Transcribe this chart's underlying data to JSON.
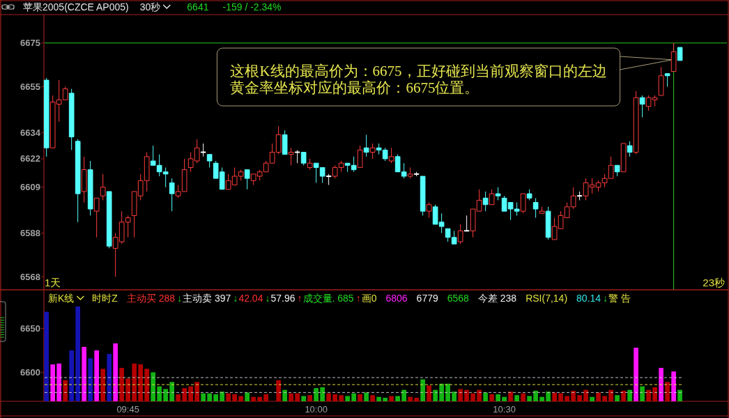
{
  "chart_data": [
    {
      "type": "candlestick",
      "title": "苹果2005(CZCE AP005)",
      "subtitle": "30秒",
      "categories": [
        null,
        null,
        null,
        null,
        null,
        null,
        null,
        null,
        null,
        null,
        null,
        null,
        null,
        null,
        null,
        null,
        null,
        null,
        null,
        null,
        null,
        null,
        null,
        null,
        null,
        null,
        null,
        null,
        null,
        null,
        null,
        null,
        null,
        null,
        null,
        null,
        null,
        null,
        null,
        null,
        null,
        null,
        null,
        null,
        null,
        null,
        null,
        null,
        null,
        null,
        null,
        null,
        null,
        null,
        null,
        null,
        null,
        null,
        null,
        null,
        null,
        null,
        null,
        null,
        null,
        null,
        null,
        null,
        null,
        null,
        null,
        null,
        null,
        null,
        null,
        null,
        null,
        null,
        null,
        null,
        null,
        null,
        null,
        null,
        null,
        null,
        null,
        null,
        null,
        null,
        null,
        null,
        null,
        null,
        null,
        null,
        null,
        null,
        null,
        null,
        null,
        null
      ],
      "ohlc": [
        [
          6658,
          6659,
          6623,
          6627
        ],
        [
          6627,
          6651,
          6627,
          6648
        ],
        [
          6647,
          6658,
          6639,
          6649
        ],
        [
          6649,
          6655,
          6649,
          6654
        ],
        [
          6652,
          6654,
          6626,
          6632
        ],
        [
          6630,
          6631,
          6593,
          6606
        ],
        [
          6607,
          6623,
          6602,
          6617
        ],
        [
          6617,
          6621,
          6596,
          6599
        ],
        [
          6598,
          6604,
          6586,
          6604
        ],
        [
          6605,
          6615,
          6603,
          6609
        ],
        [
          6607,
          6607,
          6581,
          6582
        ],
        [
          6581,
          6588,
          6568,
          6586
        ],
        [
          6584,
          6598,
          6583,
          6593
        ],
        [
          6593,
          6596,
          6586,
          6595
        ],
        [
          6596,
          6607,
          6586,
          6607
        ],
        [
          6605,
          6615,
          6603,
          6612
        ],
        [
          6612,
          6625,
          6607,
          6623
        ],
        [
          6621,
          6628,
          6619,
          6619
        ],
        [
          6619,
          6624,
          6614,
          6616
        ],
        [
          6616,
          6618,
          6609,
          6615
        ],
        [
          6611,
          6613,
          6598,
          6606
        ],
        [
          6605,
          6610,
          6604,
          6607
        ],
        [
          6607,
          6622,
          6607,
          6617
        ],
        [
          6618,
          6625,
          6616,
          6622
        ],
        [
          6621,
          6631,
          6620,
          6627
        ],
        [
          6625,
          6629,
          6623,
          6625
        ],
        [
          6624,
          6624,
          6618,
          6621
        ],
        [
          6620,
          6621,
          6613,
          6613
        ],
        [
          6616,
          6618,
          6608,
          6608
        ],
        [
          6608,
          6615,
          6608,
          6612
        ],
        [
          6610,
          6618,
          6610,
          6614
        ],
        [
          6614,
          6617,
          6612,
          6616
        ],
        [
          6617,
          6617,
          6608,
          6613
        ],
        [
          6612,
          6615,
          6610,
          6615
        ],
        [
          6614,
          6617,
          6612,
          6616
        ],
        [
          6616,
          6621,
          6616,
          6620
        ],
        [
          6620,
          6629,
          6620,
          6625
        ],
        [
          6625,
          6637,
          6624,
          6633
        ],
        [
          6633,
          6635,
          6624,
          6624
        ],
        [
          6624,
          6627,
          6619,
          6625
        ],
        [
          6625,
          6626,
          6620,
          6625
        ],
        [
          6625,
          6625,
          6619,
          6620
        ],
        [
          6618,
          6622,
          6617,
          6620
        ],
        [
          6620,
          6620,
          6611,
          6618
        ],
        [
          6618,
          6618,
          6611,
          6614
        ],
        [
          6614,
          6615,
          6610,
          6614
        ],
        [
          6614,
          6619,
          6613,
          6618
        ],
        [
          6618,
          6621,
          6616,
          6620
        ],
        [
          6620,
          6620,
          6616,
          6619
        ],
        [
          6619,
          6623,
          6616,
          6617
        ],
        [
          6618,
          6628,
          6618,
          6626
        ],
        [
          6627,
          6633,
          6623,
          6625
        ],
        [
          6625,
          6629,
          6622,
          6627
        ],
        [
          6627,
          6629,
          6624,
          6626
        ],
        [
          6626,
          6627,
          6621,
          6622
        ],
        [
          6621,
          6627,
          6620,
          6623
        ],
        [
          6623,
          6624,
          6616,
          6616
        ],
        [
          6616,
          6620,
          6613,
          6614
        ],
        [
          6614,
          6618,
          6613,
          6615
        ],
        [
          6615,
          6616,
          6614,
          6615
        ],
        [
          6614,
          6614,
          6596,
          6598
        ],
        [
          6598,
          6602,
          6595,
          6601
        ],
        [
          6600,
          6601,
          6592,
          6592
        ],
        [
          6593,
          6597,
          6588,
          6591
        ],
        [
          6590,
          6590,
          6584,
          6586
        ],
        [
          6586,
          6589,
          6583,
          6583
        ],
        [
          6584,
          6592,
          6583,
          6589
        ],
        [
          6589,
          6596,
          6589,
          6589
        ],
        [
          6589,
          6599,
          6586,
          6599
        ],
        [
          6598,
          6608,
          6598,
          6603
        ],
        [
          6604,
          6607,
          6598,
          6601
        ],
        [
          6601,
          6608,
          6601,
          6606
        ],
        [
          6606,
          6609,
          6603,
          6605
        ],
        [
          6604,
          6605,
          6598,
          6598
        ],
        [
          6602,
          6602,
          6594,
          6599
        ],
        [
          6599,
          6602,
          6596,
          6598
        ],
        [
          6598,
          6606,
          6597,
          6606
        ],
        [
          6606,
          6608,
          6603,
          6604
        ],
        [
          6602,
          6604,
          6595,
          6599
        ],
        [
          6597,
          6600,
          6597,
          6598
        ],
        [
          6598,
          6600,
          6585,
          6586
        ],
        [
          6585,
          6595,
          6585,
          6591
        ],
        [
          6590,
          6598,
          6590,
          6596
        ],
        [
          6595,
          6602,
          6595,
          6600
        ],
        [
          6600,
          6609,
          6599,
          6605
        ],
        [
          6605,
          6607,
          6603,
          6605
        ],
        [
          6605,
          6613,
          6603,
          6611
        ],
        [
          6609,
          6613,
          6606,
          6610
        ],
        [
          6609,
          6612,
          6607,
          6611
        ],
        [
          6611,
          6615,
          6609,
          6613
        ],
        [
          6613,
          6623,
          6613,
          6619
        ],
        [
          6619,
          6619,
          6614,
          6616
        ],
        [
          6616,
          6629,
          6616,
          6629
        ],
        [
          6628,
          6630,
          6623,
          6625
        ],
        [
          6625,
          6653,
          6624,
          6650
        ],
        [
          6650,
          6651,
          6641,
          6647
        ],
        [
          6646,
          6651,
          6644,
          6650
        ],
        [
          6649,
          6651,
          6646,
          6650
        ],
        [
          6651,
          6664,
          6651,
          6660
        ],
        [
          6661,
          6661,
          6655,
          6660
        ],
        [
          6662,
          6675,
          6662,
          6671
        ],
        [
          6673,
          6673,
          6667,
          6667
        ]
      ],
      "colors": [
        "#54ffff",
        "#ff3c3c",
        "#ff3c3c",
        "#ff3c3c",
        "#54ffff",
        "#54ffff",
        "#ff3c3c",
        "#54ffff",
        "#ff3c3c",
        "#ff3c3c",
        "#54ffff",
        "#ff3c3c",
        "#ff3c3c",
        "#ff3c3c",
        "#ff3c3c",
        "#ff3c3c",
        "#ff3c3c",
        "#54ffff",
        "#54ffff",
        "#54ffff",
        "#54ffff",
        "#ff3c3c",
        "#ff3c3c",
        "#ff3c3c",
        "#ff3c3c",
        "#ffffff",
        "#54ffff",
        "#54ffff",
        "#54ffff",
        "#ff3c3c",
        "#ff3c3c",
        "#ff3c3c",
        "#54ffff",
        "#ff3c3c",
        "#ff3c3c",
        "#ff3c3c",
        "#ff3c3c",
        "#ff3c3c",
        "#54ffff",
        "#ff3c3c",
        "#ffffff",
        "#54ffff",
        "#ff3c3c",
        "#54ffff",
        "#54ffff",
        "#ffffff",
        "#ff3c3c",
        "#ff3c3c",
        "#54ffff",
        "#54ffff",
        "#ff3c3c",
        "#54ffff",
        "#ff3c3c",
        "#54ffff",
        "#54ffff",
        "#ff3c3c",
        "#54ffff",
        "#54ffff",
        "#ff3c3c",
        "#ffffff",
        "#54ffff",
        "#ff3c3c",
        "#54ffff",
        "#54ffff",
        "#54ffff",
        "#54ffff",
        "#ff3c3c",
        "#ffffff",
        "#ff3c3c",
        "#ff3c3c",
        "#54ffff",
        "#ff3c3c",
        "#54ffff",
        "#54ffff",
        "#54ffff",
        "#54ffff",
        "#ff3c3c",
        "#54ffff",
        "#54ffff",
        "#ff3c3c",
        "#54ffff",
        "#ff3c3c",
        "#ff3c3c",
        "#ff3c3c",
        "#ff3c3c",
        "#ffffff",
        "#ff3c3c",
        "#ff3c3c",
        "#ff3c3c",
        "#ff3c3c",
        "#ff3c3c",
        "#54ffff",
        "#ff3c3c",
        "#54ffff",
        "#ff3c3c",
        "#54ffff",
        "#ff3c3c",
        "#ff3c3c",
        "#ff3c3c",
        "#54ffff",
        "#ff3c3c",
        "#54ffff"
      ],
      "ylim": [
        6562,
        6688
      ],
      "yticks": [
        6675,
        6655,
        6634,
        6622,
        6609,
        6588,
        6568
      ],
      "tick_labels": "y",
      "ref_lines": [
        {
          "axis": "y",
          "value": 6675,
          "color": "#28c828"
        }
      ],
      "annotations": [
        "6641",
        "-159 / -2.34%",
        {
          "text": "这根K线的最高价为：6675，正好碰到当前观察窗口的左边黄金率坐标对应的最高价：6675位置。",
          "y": 6675
        },
        "1天",
        "23秒"
      ]
    },
    {
      "type": "bar",
      "title": "新K线",
      "categories": [
        null,
        null,
        null,
        null,
        null,
        null,
        null,
        null,
        null,
        null,
        null,
        null,
        null,
        "09:45",
        null,
        null,
        null,
        null,
        null,
        null,
        null,
        null,
        null,
        null,
        null,
        null,
        null,
        null,
        null,
        null,
        null,
        null,
        null,
        null,
        null,
        null,
        null,
        null,
        null,
        null,
        null,
        null,
        null,
        "10:00",
        null,
        null,
        null,
        null,
        null,
        null,
        null,
        null,
        null,
        null,
        null,
        null,
        null,
        null,
        null,
        null,
        null,
        null,
        null,
        null,
        null,
        null,
        null,
        null,
        null,
        null,
        null,
        null,
        null,
        "10:30",
        null,
        null,
        null,
        null,
        null,
        null,
        null,
        null,
        null,
        null,
        null,
        null,
        null,
        null,
        null,
        null,
        null,
        null,
        null,
        null,
        null,
        null,
        null,
        null,
        null,
        null,
        null,
        null
      ],
      "base": [
        6567,
        6567,
        6567,
        6567,
        6567,
        6567,
        6567,
        6567,
        6567,
        6567,
        6567,
        6567,
        6567,
        6567,
        6567,
        6567,
        6567,
        6567,
        6567,
        6567,
        6567,
        6567,
        6567,
        6567,
        6567,
        6567,
        6567,
        6567,
        6567,
        6567,
        6567,
        6567,
        6567,
        6567,
        6567,
        6567,
        null,
        6567,
        6567,
        6567,
        6567,
        6567,
        6567,
        6567,
        6567,
        6567,
        6567,
        6567,
        6567,
        6567,
        6567,
        6567,
        6567,
        6567,
        6567,
        6567,
        6567,
        6567,
        6567,
        6567,
        6567,
        6567,
        6567,
        6567,
        6567,
        6567,
        6567,
        6567,
        6567,
        6567,
        6567,
        6567,
        6567,
        6567,
        6567,
        6567,
        6567,
        6567,
        6567,
        6567,
        6567,
        6567,
        6567,
        6567,
        6567,
        6567,
        6567,
        6567,
        6567,
        6567,
        6567,
        6567,
        6567,
        6567,
        6567,
        6567,
        6567,
        6567,
        6567,
        6567,
        6567,
        6567
      ],
      "values": [
        102,
        42,
        43,
        24,
        58,
        108,
        62,
        49,
        58,
        37,
        54,
        66,
        38,
        26,
        43,
        42,
        37,
        33,
        17,
        14,
        22,
        8,
        15,
        17,
        22,
        9,
        9,
        8,
        11,
        9,
        8,
        6,
        10,
        5,
        5,
        8,
        null,
        24,
        13,
        9,
        9,
        6,
        7,
        15,
        16,
        9,
        8,
        7,
        6,
        9,
        8,
        10,
        7,
        5,
        4,
        6,
        6,
        13,
        5,
        4,
        25,
        18,
        13,
        20,
        20,
        11,
        14,
        13,
        9,
        13,
        10,
        8,
        8,
        5,
        11,
        7,
        9,
        6,
        12,
        5,
        11,
        10,
        9,
        6,
        12,
        7,
        13,
        5,
        10,
        6,
        13,
        7,
        12,
        13,
        61,
        17,
        13,
        16,
        38,
        22,
        34,
        13
      ],
      "colors": [
        "#1414b4",
        "#ff14ff",
        "#ff14ff",
        "#b40000",
        "#1414b4",
        "#1414b4",
        "#ff14ff",
        "#1414b4",
        "#ff14ff",
        "#b40000",
        "#1414b4",
        "#ff14ff",
        "#b40000",
        "#b40000",
        "#b40000",
        "#b40000",
        "#b40000",
        "#14b414",
        "#14b414",
        "#14b414",
        "#14b414",
        "#b40000",
        "#b40000",
        "#b40000",
        "#b40000",
        "#14b414",
        "#14b414",
        "#14b414",
        "#14b414",
        "#b40000",
        "#b40000",
        "#b40000",
        "#14b414",
        "#b40000",
        "#b40000",
        "#b40000",
        null,
        "#b40000",
        "#14b414",
        "#b40000",
        "#b40000",
        "#14b414",
        "#b40000",
        "#14b414",
        "#14b414",
        "#b40000",
        "#b40000",
        "#b40000",
        "#14b414",
        "#14b414",
        "#b40000",
        "#14b414",
        "#b40000",
        "#14b414",
        "#14b414",
        "#b40000",
        "#14b414",
        "#14b414",
        "#b40000",
        "#b40000",
        "#14b414",
        "#b40000",
        "#14b414",
        "#14b414",
        "#14b414",
        "#14b414",
        "#b40000",
        "#b40000",
        "#b40000",
        "#b40000",
        "#14b414",
        "#b40000",
        "#14b414",
        "#14b414",
        "#b40000",
        "#14b414",
        "#b40000",
        "#14b414",
        "#14b414",
        "#14b414",
        "#14b414",
        "#b40000",
        "#b40000",
        "#b40000",
        "#b40000",
        "#b40000",
        "#b40000",
        "#14b414",
        "#b40000",
        "#b40000",
        "#b40000",
        "#14b414",
        "#b40000",
        "#14b414",
        "#ff14ff",
        "#14b414",
        "#b40000",
        "#b40000",
        "#ff14ff",
        "#b40000",
        "#ff14ff",
        "#14b414"
      ],
      "ylim": [
        6567,
        6694
      ],
      "yticks": [
        6650,
        6600
      ],
      "ref_lines": [
        {
          "axis": "y",
          "value": 6594,
          "color": "#bebebe",
          "line_style": "dashed"
        },
        {
          "axis": "y",
          "value": 6586,
          "color": "#dcdc3c",
          "line_style": "dashed"
        },
        {
          "axis": "y",
          "value": 6577,
          "color": "#bebebe",
          "line_style": "dashed"
        }
      ],
      "annotations": [
        "时时Z",
        "主动买 288",
        "↓",
        "主动卖 397",
        "↓",
        "42.04",
        "↓",
        "57.96",
        "↑",
        "成交量. 685",
        "↑",
        "画0",
        "6806",
        "6779",
        "6568",
        "今差 238",
        "RSI(7,14)",
        "80.14",
        "↓",
        "警 告"
      ]
    }
  ]
}
